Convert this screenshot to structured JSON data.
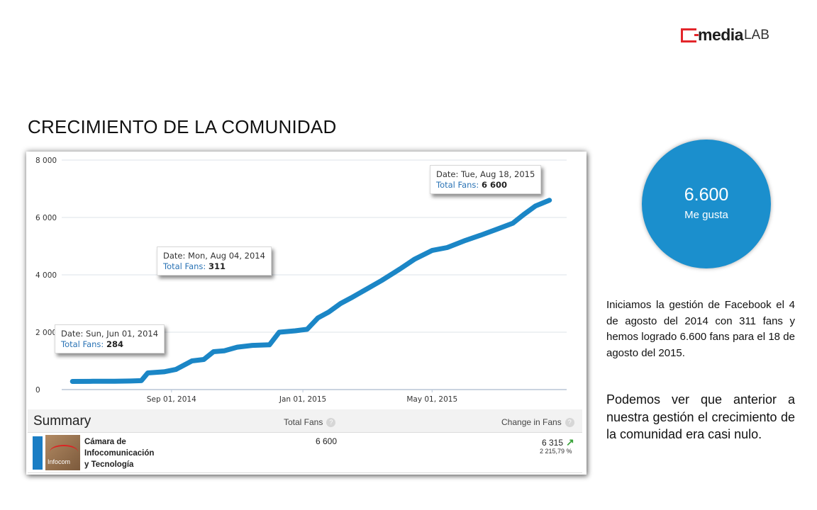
{
  "logo": {
    "main": "media",
    "sub": "LAB"
  },
  "page_title": "CRECIMIENTO DE LA COMUNIDAD",
  "chart_data": {
    "type": "line",
    "title": "",
    "xlabel": "",
    "ylabel": "",
    "ylim": [
      0,
      8000
    ],
    "y_ticks": [
      "0",
      "2 000",
      "4 000",
      "6 000",
      "8 000"
    ],
    "x_ticks": [
      "Sep 01, 2014",
      "Jan 01, 2015",
      "May 01, 2015"
    ],
    "grid": true,
    "series": [
      {
        "color": "#1b86c6",
        "x": [
          "2014-06-01",
          "2014-06-20",
          "2014-07-10",
          "2014-07-25",
          "2014-08-04",
          "2014-08-10",
          "2014-08-25",
          "2014-09-05",
          "2014-09-20",
          "2014-10-01",
          "2014-10-10",
          "2014-10-20",
          "2014-11-01",
          "2014-11-15",
          "2014-12-01",
          "2014-12-10",
          "2014-12-25",
          "2015-01-05",
          "2015-01-15",
          "2015-01-25",
          "2015-02-05",
          "2015-02-15",
          "2015-03-01",
          "2015-03-15",
          "2015-04-01",
          "2015-04-15",
          "2015-05-01",
          "2015-05-15",
          "2015-06-01",
          "2015-06-15",
          "2015-07-01",
          "2015-07-15",
          "2015-07-25",
          "2015-08-05",
          "2015-08-18"
        ],
        "y": [
          284,
          288,
          292,
          300,
          311,
          580,
          620,
          700,
          1000,
          1050,
          1320,
          1350,
          1480,
          1540,
          1560,
          2000,
          2050,
          2100,
          2500,
          2700,
          3000,
          3200,
          3500,
          3800,
          4200,
          4550,
          4850,
          4950,
          5200,
          5380,
          5600,
          5800,
          6100,
          6400,
          6600
        ]
      }
    ],
    "annotations": [
      {
        "date_label": "Date:",
        "date": "Sun, Jun 01, 2014",
        "fans_label": "Total Fans:",
        "fans": "284"
      },
      {
        "date_label": "Date:",
        "date": "Mon, Aug 04, 2014",
        "fans_label": "Total Fans:",
        "fans": "311"
      },
      {
        "date_label": "Date:",
        "date": "Tue, Aug 18, 2015",
        "fans_label": "Total Fans:",
        "fans": "6 600"
      }
    ]
  },
  "summary": {
    "title": "Summary",
    "col_total": "Total Fans",
    "col_change": "Change in Fans",
    "help": "?",
    "row": {
      "thumb_text": "Infocom",
      "name_1": "Cámara de",
      "name_2": "Infocomunicación",
      "name_3": "y Tecnología",
      "total": "6 600",
      "change": "6 315",
      "change_icon": "arrow-up-right-icon",
      "change_pct": "2 215,79 %"
    }
  },
  "highlight": {
    "value": "6.600",
    "label": "Me gusta",
    "color": "#1b8fcd"
  },
  "paragraph_1": "Iniciamos la gestión de Facebook el 4 de agosto del 2014 con 311 fans y hemos logrado 6.600 fans para el 18 de agosto del 2015.",
  "paragraph_2": "Podemos ver que anterior a nuestra gestión el crecimiento de la comunidad era casi nulo."
}
